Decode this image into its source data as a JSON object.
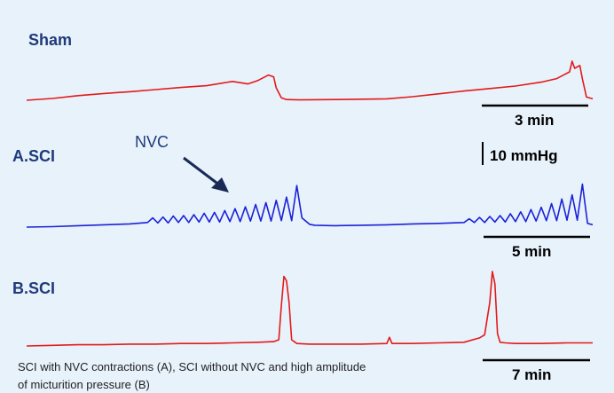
{
  "colors": {
    "background": "#e8f2fb",
    "sham": "#e21a1a",
    "sci_a": "#1a22d8",
    "sci_b": "#e21a1a",
    "label": "#1f3a7a",
    "arrow": "#1a2a55"
  },
  "labels": {
    "sham": "Sham",
    "sci_a": "A.SCI",
    "sci_b": "B.SCI",
    "nvc": "NVC",
    "scale_3min": "3 min",
    "scale_10mmhg": "10 mmHg",
    "scale_5min": "5 min",
    "scale_7min": "7 min"
  },
  "caption": {
    "line1": "SCI with NVC contractions  (A), SCI without NVC and high amplitude",
    "line2": "of micturition pressure (B)"
  },
  "chart_data": [
    {
      "type": "line",
      "panel": "Sham",
      "x_unit": "min",
      "y_unit": "mmHg",
      "xlim": [
        0,
        11
      ],
      "ylim": [
        0,
        12
      ],
      "series": [
        {
          "x": [
            0,
            0.5,
            1.0,
            1.5,
            2.0,
            2.5,
            3.0,
            3.5,
            4.0,
            4.3,
            4.5,
            4.7,
            4.8,
            4.85,
            4.95,
            5.05,
            5.3,
            6.0,
            7.0,
            7.5,
            8.0,
            8.5,
            9.0,
            9.5,
            10.0,
            10.3,
            10.55,
            10.6,
            10.65,
            10.75,
            10.8,
            10.88,
            11.0
          ],
          "y": [
            0.0,
            0.5,
            1.3,
            1.9,
            2.4,
            3.0,
            3.6,
            4.1,
            5.3,
            4.6,
            5.6,
            7.1,
            6.6,
            3.5,
            0.7,
            0.2,
            0.1,
            0.2,
            0.4,
            1.0,
            1.8,
            2.6,
            3.3,
            4.0,
            5.1,
            6.1,
            8.0,
            11.0,
            9.0,
            9.8,
            6.0,
            0.9,
            0.4
          ]
        }
      ]
    },
    {
      "type": "line",
      "panel": "A.SCI",
      "x_unit": "min",
      "y_unit": "mmHg",
      "xlim": [
        0,
        11
      ],
      "ylim": [
        0,
        12
      ],
      "series": [
        {
          "x": [
            0,
            0.5,
            1.0,
            1.5,
            2.0,
            2.35,
            2.45,
            2.55,
            2.65,
            2.75,
            2.85,
            2.95,
            3.05,
            3.15,
            3.25,
            3.35,
            3.45,
            3.55,
            3.65,
            3.75,
            3.85,
            3.95,
            4.05,
            4.15,
            4.25,
            4.35,
            4.45,
            4.55,
            4.65,
            4.75,
            4.85,
            4.95,
            5.05,
            5.15,
            5.25,
            5.35,
            5.5,
            5.6,
            6.0,
            6.5,
            7.0,
            7.5,
            8.0,
            8.5,
            8.6,
            8.7,
            8.8,
            8.9,
            9.0,
            9.1,
            9.2,
            9.3,
            9.4,
            9.5,
            9.6,
            9.7,
            9.8,
            9.9,
            10.0,
            10.1,
            10.2,
            10.3,
            10.4,
            10.5,
            10.6,
            10.7,
            10.8,
            10.9,
            11.0
          ],
          "y": [
            0.0,
            0.1,
            0.3,
            0.5,
            0.7,
            1.0,
            2.0,
            0.9,
            2.2,
            0.9,
            2.4,
            1.0,
            2.5,
            1.0,
            2.7,
            1.1,
            3.0,
            1.1,
            3.2,
            1.1,
            3.6,
            1.2,
            4.0,
            1.2,
            4.4,
            1.3,
            4.9,
            1.3,
            5.3,
            1.3,
            5.8,
            1.4,
            6.5,
            1.4,
            9.0,
            2.0,
            0.6,
            0.4,
            0.3,
            0.4,
            0.5,
            0.7,
            0.8,
            1.0,
            1.8,
            1.0,
            2.1,
            1.0,
            2.3,
            1.1,
            2.5,
            1.1,
            2.9,
            1.2,
            3.3,
            1.2,
            3.8,
            1.3,
            4.3,
            1.4,
            5.1,
            1.4,
            6.1,
            1.5,
            7.0,
            1.5,
            9.3,
            0.8,
            0.5
          ]
        }
      ]
    },
    {
      "type": "line",
      "panel": "B.SCI",
      "x_unit": "min",
      "y_unit": "mmHg",
      "xlim": [
        0,
        11
      ],
      "ylim": [
        0,
        12
      ],
      "series": [
        {
          "x": [
            0,
            0.5,
            1.0,
            1.5,
            2.0,
            2.5,
            3.0,
            3.5,
            4.0,
            4.5,
            4.8,
            4.9,
            4.95,
            5.0,
            5.05,
            5.1,
            5.15,
            5.25,
            5.5,
            6.0,
            6.5,
            7.0,
            7.05,
            7.1,
            7.5,
            8.0,
            8.5,
            8.8,
            8.9,
            9.0,
            9.05,
            9.1,
            9.15,
            9.2,
            9.3,
            9.5,
            10.0,
            10.5,
            11.0
          ],
          "y": [
            0.0,
            0.1,
            0.2,
            0.2,
            0.3,
            0.3,
            0.4,
            0.4,
            0.5,
            0.6,
            0.7,
            1.0,
            6.5,
            11.2,
            10.5,
            7.0,
            1.0,
            0.4,
            0.3,
            0.3,
            0.3,
            0.4,
            1.4,
            0.4,
            0.4,
            0.5,
            0.6,
            1.3,
            1.8,
            7.0,
            12.0,
            10.0,
            2.0,
            0.6,
            0.5,
            0.4,
            0.4,
            0.5,
            0.5
          ]
        }
      ]
    }
  ]
}
